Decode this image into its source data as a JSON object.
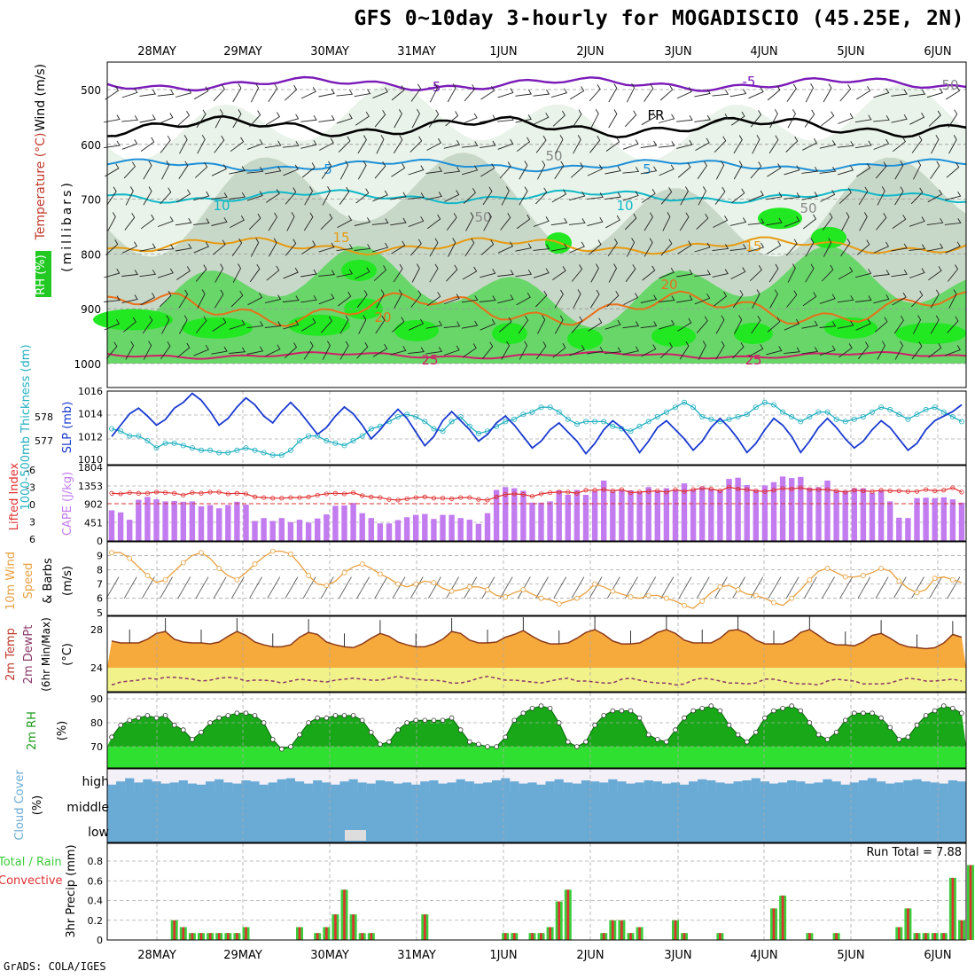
{
  "chart_data": {
    "type": "line",
    "title": "GFS 0~10day 3-hourly for MOGADISCIO (45.25E, 2N)",
    "footer": "GrADS: COLA/IGES",
    "date_labels": [
      "28MAY",
      "29MAY",
      "30MAY",
      "31MAY",
      "1JUN",
      "2JUN",
      "3JUN",
      "4JUN",
      "5JUN",
      "6JUN"
    ],
    "grid": true,
    "colors": {
      "rh_light": "#e9f3e9",
      "rh_mid": "#c8d8c8",
      "rh_high": "#69d66a",
      "rh_sat": "#21e821",
      "temp_fill": "#f7aa3c",
      "dew_fill": "#f2f28a",
      "rh2m_fill": "#18a818",
      "cloud": "#6aabd6",
      "cape": "#c27cf0",
      "precip_total": "#3ccc3c",
      "precip_conv": "#e03030"
    },
    "panels": [
      {
        "key": "upper",
        "ylabel_parts": [
          {
            "text": "RH (%)",
            "color": "#1a9a1a"
          },
          {
            "text": "Temperature (°C)",
            "color": "#c0392b"
          },
          {
            "text": "Wind (m/s)",
            "color": "#000"
          }
        ],
        "ylabel2": "(millibars)",
        "yticks": [
          "500",
          "600",
          "700",
          "800",
          "900",
          "1000"
        ],
        "contour_labels": [
          {
            "text": "-5",
            "color": "#7a1ab8"
          },
          {
            "text": "FR",
            "color": "#000"
          },
          {
            "text": "5",
            "color": "#1e90d8"
          },
          {
            "text": "10",
            "color": "#10b8c8"
          },
          {
            "text": "15",
            "color": "#e89a10"
          },
          {
            "text": "20",
            "color": "#e8701a"
          },
          {
            "text": "25",
            "color": "#d0206a"
          },
          {
            "text": "50",
            "color": "#888"
          }
        ]
      },
      {
        "key": "slp",
        "ylabel_left": "1000-500mb Thickness (dm)",
        "ylabel_right": "SLP (mb)",
        "left_ticks": [
          "578",
          "577"
        ],
        "right_ticks": [
          "1016",
          "1014",
          "1012",
          "1010"
        ]
      },
      {
        "key": "cape",
        "ylabel_left": "Lifted Index",
        "ylabel_right": "CAPE (J/kg)",
        "left_ticks": [
          "-6",
          "-3",
          "0",
          "3",
          "6"
        ],
        "right_ticks": [
          "1804",
          "1353",
          "902",
          "451",
          "0"
        ]
      },
      {
        "key": "wind10",
        "ylabel_left": "10m Wind Speed & Barbs",
        "ylabel_right": "(m/s)",
        "yticks": [
          "9",
          "8",
          "7",
          "6",
          "5"
        ]
      },
      {
        "key": "temp2m",
        "ylabel_lines": [
          "2m Temp",
          "2m DewPt",
          "(6hr Min/Max)"
        ],
        "ylabel_right": "(°C)",
        "yticks": [
          "28",
          "24"
        ]
      },
      {
        "key": "rh2m",
        "ylabel_left": "2m RH",
        "ylabel_right": "(%)",
        "yticks": [
          "90",
          "80",
          "70"
        ]
      },
      {
        "key": "cloud",
        "ylabel_left": "Cloud Cover",
        "ylabel_right": "(%)",
        "layers": [
          "high",
          "middle",
          "low"
        ]
      },
      {
        "key": "precip",
        "ylabel_left": "Total / Rain",
        "ylabel_left2": "Convective",
        "ylabel_right": "3hr Precip (mm)",
        "yticks": [
          "0.8",
          "0.6",
          "0.4",
          "0.2",
          "0"
        ],
        "run_total": "Run Total = 7.88"
      }
    ],
    "series": {
      "slp": [
        1012,
        1013,
        1014,
        1014.5,
        1013.8,
        1013,
        1013.5,
        1014.5,
        1015,
        1015.8,
        1015.2,
        1014.2,
        1013,
        1013.6,
        1014.6,
        1015.4,
        1014.8,
        1013.8,
        1013.2,
        1014.2,
        1015,
        1014.2,
        1013.2,
        1012.2,
        1012.8,
        1013.8,
        1014.6,
        1014,
        1013,
        1011.8,
        1012.6,
        1013.6,
        1014.4,
        1013.6,
        1012.4,
        1011.2,
        1012,
        1013.4,
        1014.2,
        1013.4,
        1012.6,
        1011.6,
        1012.2,
        1013.2,
        1013.8,
        1013,
        1012,
        1011,
        1011.6,
        1012.6,
        1013.2,
        1012.4,
        1011.6,
        1010.5,
        1011.4,
        1012.6,
        1013.4,
        1012.8,
        1011.8,
        1010.6,
        1011.6,
        1012.8,
        1013.4,
        1012.6,
        1011.8,
        1010.8,
        1011.6,
        1012.8,
        1013.6,
        1012.8,
        1011.8,
        1010.6,
        1011.4,
        1012.6,
        1013.6,
        1013,
        1012,
        1010.6,
        1011.6,
        1012.8,
        1013.6,
        1012.8,
        1011.8,
        1011,
        1011.6,
        1012.6,
        1013.4,
        1012.8,
        1011.8,
        1010.8,
        1011.4,
        1012.6,
        1013.4,
        1013.8,
        1014.2,
        1014.8
      ],
      "thickness": [
        577.5,
        577.4,
        577.2,
        577.2,
        577,
        576.7,
        576.9,
        576.9,
        576.8,
        576.7,
        576.6,
        576.6,
        576.5,
        576.5,
        576.6,
        576.7,
        576.6,
        576.5,
        576.4,
        576.4,
        576.6,
        577,
        577.2,
        577.2,
        577,
        576.9,
        576.8,
        577,
        577.2,
        577.5,
        577.6,
        577.8,
        578,
        578.1,
        578,
        577.8,
        577.5,
        577.4,
        577.8,
        578,
        577.6,
        577.3,
        577.4,
        577.6,
        577.8,
        577.9,
        578.1,
        578.2,
        578.4,
        578.4,
        578.2,
        577.9,
        577.7,
        577.8,
        577.8,
        577.8,
        577.6,
        577.5,
        577.4,
        577.6,
        577.8,
        578,
        578.2,
        578.4,
        578.6,
        578.4,
        578,
        577.9,
        577.8,
        577.9,
        578,
        578.1,
        578.4,
        578.6,
        578.5,
        578.2,
        578,
        577.8,
        578,
        578.2,
        578.2,
        577.9,
        577.8,
        577.9,
        578,
        578.2,
        578.4,
        578.3,
        578.1,
        577.9,
        578.1,
        578.3,
        578.4,
        578.2,
        578,
        577.8
      ],
      "cape": [
        750,
        700,
        520,
        1010,
        1080,
        1020,
        970,
        980,
        960,
        970,
        850,
        880,
        800,
        880,
        960,
        890,
        490,
        560,
        490,
        560,
        460,
        520,
        450,
        550,
        650,
        860,
        870,
        930,
        680,
        560,
        430,
        430,
        510,
        580,
        640,
        660,
        540,
        640,
        640,
        560,
        520,
        420,
        680,
        1250,
        1320,
        1290,
        1230,
        940,
        940,
        970,
        1240,
        1130,
        1250,
        1130,
        1220,
        1480,
        1210,
        1240,
        1240,
        1210,
        1320,
        1220,
        1290,
        1240,
        1410,
        1260,
        1320,
        1270,
        1240,
        1520,
        1550,
        1370,
        1250,
        1360,
        1440,
        1580,
        1540,
        1570,
        1300,
        1320,
        1480,
        1240,
        1230,
        1290,
        1290,
        1180,
        1240,
        970,
        570,
        560,
        1050,
        1060,
        1050,
        1070,
        1020,
        940
      ],
      "lifted": [
        -1.7,
        -1.6,
        -1.8,
        -1.7,
        -1.7,
        -1.9,
        -1.8,
        -1.7,
        -1.4,
        -1.8,
        -1.7,
        -1.9,
        -1.9,
        -1.6,
        -1.7,
        -1.6,
        -1.1,
        -1,
        -0.9,
        -0.9,
        -1,
        -1,
        -1.1,
        -1.4,
        -1.6,
        -1.7,
        -1.6,
        -1.8,
        -1.3,
        -1.1,
        -1,
        -0.7,
        -0.6,
        -0.8,
        -1,
        -1.1,
        -0.9,
        -0.9,
        -0.8,
        -1,
        -1,
        -0.7,
        -0.6,
        -1.1,
        -1.5,
        -1.6,
        -1.5,
        -1.2,
        -1.6,
        -1.8,
        -1.9,
        -1.9,
        -1.7,
        -2.2,
        -2.2,
        -2.3,
        -2.1,
        -2.3,
        -1.8,
        -1.9,
        -2,
        -2.1,
        -1.9,
        -2.3,
        -2,
        -2.3,
        -2.5,
        -2.4,
        -2.1,
        -2.7,
        -2.4,
        -2.3,
        -2.1,
        -2,
        -2.2,
        -2.5,
        -2.4,
        -2.6,
        -2.3,
        -2.3,
        -2.3,
        -2.1,
        -1.9,
        -2.2,
        -2.1,
        -2,
        -2.2,
        -2.1,
        -2.1,
        -2,
        -2,
        -2.3,
        -2.1,
        -2.2,
        -2.6,
        -1.9
      ],
      "wind10": [
        9.2,
        9.2,
        8.8,
        8.2,
        7.6,
        7.1,
        7.3,
        7.9,
        8.5,
        9,
        9.2,
        8.8,
        8.1,
        7.6,
        7.3,
        7.8,
        8.4,
        8.9,
        9.3,
        9.3,
        9.1,
        8.4,
        7.6,
        7,
        6.9,
        7.2,
        7.8,
        8.2,
        8.4,
        8.1,
        7.7,
        7.4,
        7,
        6.8,
        7,
        7.2,
        7.1,
        6.7,
        6.5,
        6.6,
        6.8,
        6.8,
        6.6,
        6.2,
        6.1,
        6.4,
        6.6,
        6.3,
        6,
        5.9,
        5.6,
        5.8,
        6,
        6.4,
        7,
        6.8,
        6.5,
        6.3,
        6.1,
        6,
        6.2,
        6.2,
        6,
        5.8,
        5.5,
        5.3,
        5.8,
        6.4,
        6.8,
        6.9,
        6.6,
        6.3,
        6.2,
        6,
        5.7,
        5.5,
        6,
        6.6,
        7.3,
        7.9,
        8.1,
        7.8,
        7.5,
        7.5,
        7.6,
        7.8,
        8.1,
        7.9,
        7.2,
        6.7,
        6.4,
        6.6,
        7.4,
        7.5,
        7.3,
        7.1
      ],
      "temp2m": [
        26.8,
        26.6,
        26.6,
        26.6,
        27,
        27.6,
        27.8,
        27,
        26.7,
        26.6,
        26.6,
        26.5,
        26.7,
        27.3,
        27.8,
        27.4,
        26.7,
        26.4,
        26.2,
        26.2,
        26.4,
        27.2,
        27.7,
        27.5,
        26.7,
        26.4,
        26.2,
        26.1,
        26.5,
        27.1,
        27.6,
        27.3,
        26.7,
        26.4,
        26.2,
        26.2,
        26.5,
        27,
        27.8,
        27.6,
        26.9,
        26.6,
        26.6,
        26.7,
        27.2,
        27.5,
        27.9,
        27.3,
        26.8,
        26.5,
        26.5,
        26.6,
        27.1,
        27.7,
        28,
        27.5,
        26.8,
        26.5,
        26.5,
        26.6,
        27.1,
        27.7,
        28,
        27.6,
        26.9,
        26.6,
        26.6,
        26.6,
        27.1,
        27.9,
        28,
        27.6,
        26.9,
        26.5,
        26.5,
        26.5,
        26.9,
        27.7,
        28,
        27.4,
        26.7,
        26.4,
        26.4,
        26.3,
        26.7,
        27.4,
        27.6,
        27.1,
        26.5,
        26.2,
        26.1,
        26,
        26.1,
        26.6,
        27.5,
        27.2
      ],
      "dew2m": [
        22.2,
        22.5,
        22.6,
        22.7,
        22.9,
        22.8,
        23,
        23,
        22.9,
        22.8,
        22.6,
        22.7,
        22.9,
        23,
        22.9,
        22.6,
        22.7,
        22.7,
        22.6,
        22.4,
        22.6,
        22.8,
        22.7,
        22.6,
        22.5,
        22.7,
        22.8,
        22.9,
        22.8,
        22.7,
        22.7,
        22.9,
        23.1,
        22.9,
        22.8,
        22.7,
        22.7,
        22.6,
        22.4,
        22.4,
        22.6,
        22.9,
        23.1,
        22.9,
        22.7,
        22.7,
        22.6,
        22.5,
        22.4,
        22.6,
        22.8,
        22.9,
        22.6,
        22.6,
        22.5,
        22.4,
        22.4,
        22.8,
        22.9,
        22.7,
        22.5,
        22.4,
        22.4,
        22.2,
        22.3,
        22.7,
        22.9,
        22.8,
        22.6,
        22.4,
        22.4,
        22.3,
        22.4,
        22.8,
        22.8,
        22.6,
        22.4,
        22.3,
        22.3,
        22.2,
        22.6,
        22.8,
        22.7,
        22.6,
        22.3,
        22.3,
        22.3,
        22.4,
        22.7,
        22.9,
        22.8,
        22.6,
        22.6,
        22.7,
        22.8,
        22.6
      ],
      "rh2m": [
        74,
        79,
        81,
        82,
        83,
        82,
        83,
        79,
        77,
        73,
        76,
        80,
        82,
        83,
        84,
        84,
        83,
        80,
        73,
        69,
        70,
        75,
        80,
        82,
        82,
        83,
        83,
        83,
        81,
        76,
        71,
        72,
        77,
        80,
        81,
        81,
        81,
        81,
        82,
        77,
        72,
        71,
        70,
        70,
        74,
        81,
        84,
        86,
        87,
        86,
        80,
        72,
        70,
        72,
        79,
        83,
        85,
        85,
        85,
        82,
        75,
        73,
        72,
        77,
        82,
        85,
        86,
        87,
        85,
        79,
        75,
        72,
        76,
        82,
        85,
        86,
        87,
        85,
        80,
        75,
        73,
        76,
        81,
        84,
        84,
        84,
        82,
        78,
        73,
        74,
        79,
        83,
        85,
        87,
        86,
        84
      ],
      "cloud_high": [
        30,
        45,
        60,
        40,
        55,
        45,
        35,
        40,
        50,
        35,
        30,
        45,
        55,
        40,
        35,
        50,
        45,
        30,
        40,
        55,
        60,
        45,
        35,
        50,
        40,
        30,
        45,
        55,
        40,
        35,
        50,
        45,
        35,
        40,
        30,
        45,
        50,
        35,
        40,
        55,
        45,
        35,
        40,
        50,
        60,
        45,
        35,
        40,
        30,
        45,
        55,
        40,
        35,
        50,
        45,
        40,
        55,
        45,
        35,
        40,
        50,
        45,
        35,
        40,
        30,
        45,
        55,
        50,
        40,
        35,
        45,
        50,
        60,
        45,
        35,
        40,
        50,
        45,
        35,
        40,
        55,
        45,
        30,
        40,
        50,
        60,
        45,
        35,
        40,
        50,
        55,
        45,
        40,
        35,
        50,
        45
      ],
      "precip": [
        0,
        0,
        0,
        0,
        0,
        0,
        0,
        0.2,
        0.13,
        0.07,
        0.07,
        0.07,
        0.07,
        0.07,
        0.07,
        0.13,
        0,
        0,
        0,
        0,
        0,
        0.13,
        0,
        0.07,
        0.13,
        0.26,
        0.51,
        0.26,
        0.07,
        0.07,
        0,
        0,
        0,
        0,
        0,
        0.26,
        0,
        0,
        0,
        0,
        0,
        0,
        0,
        0,
        0.07,
        0.07,
        0,
        0.07,
        0.07,
        0.13,
        0.39,
        0.51,
        0,
        0,
        0,
        0.07,
        0.2,
        0.2,
        0.07,
        0.13,
        0,
        0,
        0,
        0.2,
        0.07,
        0,
        0,
        0,
        0.07,
        0,
        0,
        0,
        0,
        0,
        0.32,
        0.45,
        0,
        0,
        0.07,
        0,
        0,
        0.07,
        0,
        0,
        0,
        0,
        0,
        0,
        0.13,
        0.32,
        0.07,
        0.07,
        0.07,
        0.07,
        0.63,
        0.2,
        0.76,
        0
      ]
    }
  }
}
